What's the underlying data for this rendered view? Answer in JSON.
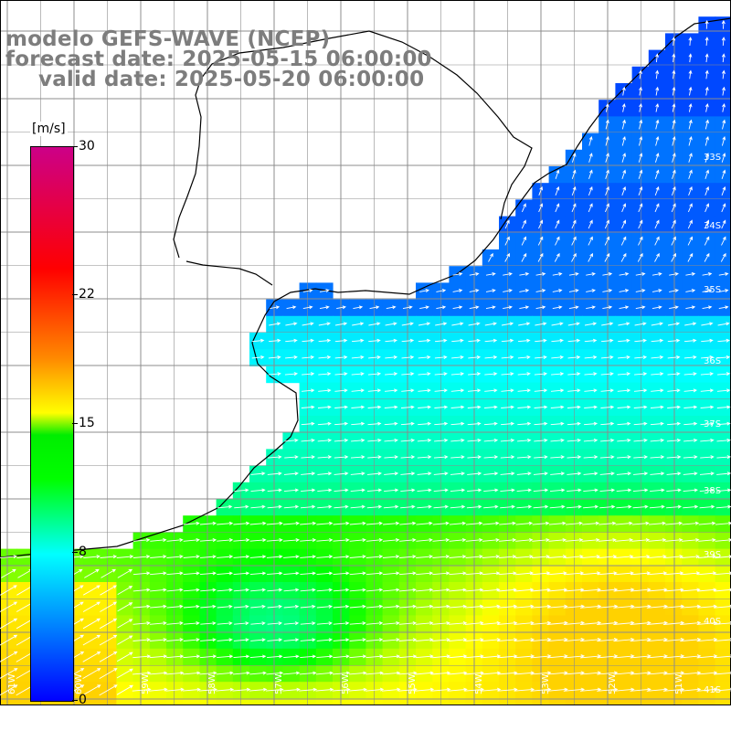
{
  "title": {
    "line1": "modelo GEFS-WAVE (NCEP)",
    "line2": "forecast date: 2025-05-15 06:00:00",
    "line3": "valid date: 2025-05-20 06:00:00"
  },
  "colorbar": {
    "unit": "[m/s]",
    "ticks": [
      {
        "label": "30",
        "value": 30
      },
      {
        "label": "22",
        "value": 22
      },
      {
        "label": "15",
        "value": 15
      },
      {
        "label": "8",
        "value": 8
      },
      {
        "label": "0",
        "value": 0
      }
    ],
    "range": [
      0,
      30
    ],
    "colors": [
      "#0000ff",
      "#00ffff",
      "#00ff00",
      "#ffff00",
      "#ff8800",
      "#ff0000",
      "#cc0088"
    ]
  },
  "map": {
    "lat_labels": [
      "33S",
      "34S",
      "35S",
      "36S",
      "37S",
      "38S",
      "39S",
      "40S",
      "41S"
    ],
    "lon_labels": [
      "61W",
      "60W",
      "59W",
      "58W",
      "57W",
      "56W",
      "55W",
      "54W",
      "53W",
      "52W",
      "51W"
    ],
    "land_color": "#ffffff",
    "grid_color": "#8c8c8c",
    "coast_color": "#000000",
    "arrow_color": "#ffffff"
  }
}
